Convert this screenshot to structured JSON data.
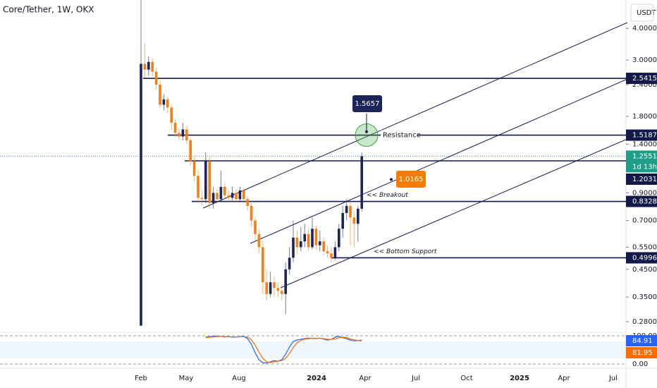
{
  "chart_data": [
    {
      "type": "candlestick",
      "title": "Core/Tether, 1W, OKX",
      "unit": "USDT",
      "log_scale": true,
      "up_color": "#1b2559",
      "down_color": "#f57f17",
      "ylim": [
        0.256,
        5.17
      ],
      "yticks": [
        {
          "value": 4,
          "label": "4.0000"
        },
        {
          "value": 3,
          "label": "3.0000"
        },
        {
          "value": 2.4,
          "label": "2.4000"
        },
        {
          "value": 1.8,
          "label": "1.8000"
        },
        {
          "value": 1.4,
          "label": "1.4000"
        },
        {
          "value": 0.9,
          "label": "0.9000"
        },
        {
          "value": 0.7,
          "label": "0.7000"
        },
        {
          "value": 0.55,
          "label": "0.5500"
        },
        {
          "value": 0.45,
          "label": "0.4500"
        },
        {
          "value": 0.35,
          "label": "0.3500"
        },
        {
          "value": 0.28,
          "label": "0.2800"
        }
      ],
      "x_labels": [
        "Feb",
        "May",
        "Aug",
        "2024",
        "Apr",
        "Jul",
        "Oct",
        "2025",
        "Apr",
        "Jul"
      ],
      "candles": [
        [
          0.27,
          5.17,
          0.27,
          2.9
        ],
        [
          2.9,
          3.5,
          2.55,
          2.75
        ],
        [
          2.75,
          3.1,
          2.6,
          2.95
        ],
        [
          2.95,
          3.05,
          2.6,
          2.7
        ],
        [
          2.7,
          2.8,
          2.3,
          2.4
        ],
        [
          2.4,
          2.5,
          1.95,
          2.0
        ],
        [
          2.0,
          2.2,
          1.9,
          2.1
        ],
        [
          2.1,
          2.15,
          1.85,
          1.95
        ],
        [
          1.95,
          2.0,
          1.6,
          1.7
        ],
        [
          1.7,
          1.75,
          1.5,
          1.55
        ],
        [
          1.55,
          1.62,
          1.45,
          1.5
        ],
        [
          1.5,
          1.7,
          1.45,
          1.6
        ],
        [
          1.6,
          1.65,
          1.4,
          1.45
        ],
        [
          1.45,
          1.48,
          1.15,
          1.2
        ],
        [
          1.2,
          1.25,
          1.0,
          1.05
        ],
        [
          1.05,
          1.1,
          0.82,
          0.86
        ],
        [
          0.86,
          0.92,
          0.8,
          0.85
        ],
        [
          0.85,
          1.3,
          0.82,
          1.2
        ],
        [
          1.2,
          1.25,
          0.78,
          0.82
        ],
        [
          0.82,
          0.95,
          0.78,
          0.9
        ],
        [
          0.9,
          0.93,
          0.82,
          0.85
        ],
        [
          0.85,
          1.1,
          0.84,
          0.95
        ],
        [
          0.95,
          0.98,
          0.85,
          0.88
        ],
        [
          0.88,
          0.92,
          0.82,
          0.86
        ],
        [
          0.86,
          0.95,
          0.84,
          0.9
        ],
        [
          0.9,
          0.93,
          0.83,
          0.85
        ],
        [
          0.85,
          0.95,
          0.83,
          0.92
        ],
        [
          0.92,
          0.94,
          0.82,
          0.85
        ],
        [
          0.85,
          0.87,
          0.77,
          0.8
        ],
        [
          0.8,
          0.82,
          0.66,
          0.7
        ],
        [
          0.7,
          0.72,
          0.58,
          0.62
        ],
        [
          0.62,
          0.65,
          0.52,
          0.55
        ],
        [
          0.55,
          0.58,
          0.36,
          0.4
        ],
        [
          0.4,
          0.45,
          0.34,
          0.36
        ],
        [
          0.36,
          0.44,
          0.35,
          0.4
        ],
        [
          0.4,
          0.42,
          0.35,
          0.38
        ],
        [
          0.38,
          0.4,
          0.35,
          0.37
        ],
        [
          0.37,
          0.39,
          0.34,
          0.36
        ],
        [
          0.36,
          0.48,
          0.3,
          0.45
        ],
        [
          0.45,
          0.55,
          0.43,
          0.5
        ],
        [
          0.5,
          0.7,
          0.48,
          0.6
        ],
        [
          0.6,
          0.64,
          0.52,
          0.55
        ],
        [
          0.55,
          0.66,
          0.53,
          0.58
        ],
        [
          0.58,
          0.68,
          0.55,
          0.62
        ],
        [
          0.62,
          0.65,
          0.53,
          0.55
        ],
        [
          0.55,
          0.72,
          0.54,
          0.65
        ],
        [
          0.65,
          0.67,
          0.54,
          0.56
        ],
        [
          0.56,
          0.64,
          0.53,
          0.58
        ],
        [
          0.58,
          0.6,
          0.51,
          0.53
        ],
        [
          0.53,
          0.56,
          0.5,
          0.52
        ],
        [
          0.52,
          0.55,
          0.48,
          0.5
        ],
        [
          0.5,
          0.58,
          0.49,
          0.55
        ],
        [
          0.55,
          0.68,
          0.53,
          0.65
        ],
        [
          0.65,
          0.8,
          0.6,
          0.75
        ],
        [
          0.75,
          0.85,
          0.7,
          0.8
        ],
        [
          0.8,
          0.83,
          0.56,
          0.72
        ],
        [
          0.72,
          0.76,
          0.55,
          0.68
        ],
        [
          0.68,
          0.8,
          0.58,
          0.78
        ],
        [
          0.78,
          1.3,
          0.76,
          1.2551
        ]
      ],
      "countdown": "1d 13h",
      "levels": [
        2.5415,
        1.5187,
        1.2031,
        0.8328,
        0.4996
      ],
      "callouts": [
        {
          "value": 1.5657,
          "color": "#1b2559"
        },
        {
          "value": 1.0165,
          "color": "#f57c00"
        }
      ],
      "annotations": [
        "Resistance",
        "<< Breakout",
        "<< Bottom Support"
      ]
    },
    {
      "type": "line",
      "ylim": [
        0,
        100
      ],
      "yticks": [
        {
          "value": 100,
          "label": "100.00"
        },
        {
          "value": 0,
          "label": "0.00"
        }
      ],
      "series": [
        {
          "color": "#2962ff",
          "values": [
            null,
            null,
            null,
            null,
            null,
            null,
            null,
            null,
            null,
            null,
            null,
            null,
            null,
            null,
            null,
            null,
            null,
            95,
            97,
            98,
            99,
            98,
            96,
            97,
            95,
            96,
            97,
            98,
            90,
            70,
            40,
            15,
            5,
            3,
            8,
            12,
            10,
            15,
            35,
            60,
            80,
            85,
            88,
            90,
            92,
            91,
            90,
            92,
            88,
            85,
            87,
            95,
            98,
            93,
            90,
            85,
            82,
            83,
            84.91
          ]
        },
        {
          "color": "#ff6d00",
          "values": [
            null,
            null,
            null,
            null,
            null,
            null,
            null,
            null,
            null,
            null,
            null,
            null,
            null,
            null,
            null,
            null,
            null,
            93,
            95,
            96,
            97,
            98,
            97,
            97,
            96,
            96,
            96,
            97,
            95,
            86,
            67,
            42,
            20,
            8,
            5,
            8,
            10,
            12,
            20,
            37,
            58,
            75,
            84,
            88,
            90,
            91,
            91,
            91,
            90,
            88,
            87,
            89,
            93,
            95,
            94,
            89,
            86,
            83,
            81.95
          ]
        }
      ]
    }
  ]
}
